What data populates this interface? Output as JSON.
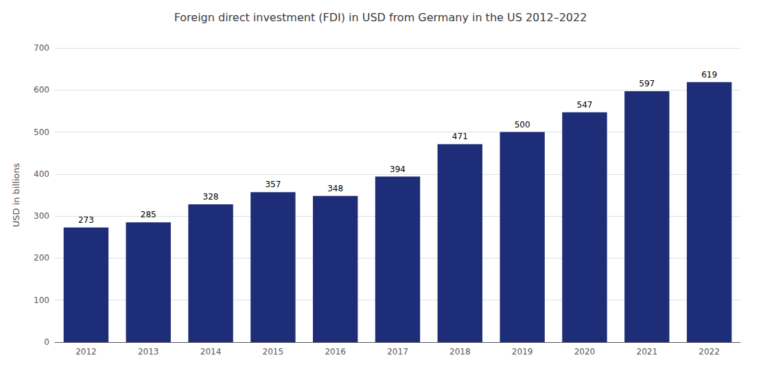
{
  "chart_data": {
    "type": "bar",
    "title": "Foreign direct investment (FDI) in USD from Germany in the US 2012–2022",
    "categories": [
      "2012",
      "2013",
      "2014",
      "2015",
      "2016",
      "2017",
      "2018",
      "2019",
      "2020",
      "2021",
      "2022"
    ],
    "values": [
      273,
      285,
      328,
      357,
      348,
      394,
      471,
      500,
      547,
      597,
      619
    ],
    "color": "#1e2d78",
    "ylabel": "USD in billions",
    "ylim": [
      0,
      700
    ],
    "yticks": [
      0,
      100,
      200,
      300,
      400,
      500,
      600,
      700
    ],
    "grid": true,
    "data_labels": true
  }
}
